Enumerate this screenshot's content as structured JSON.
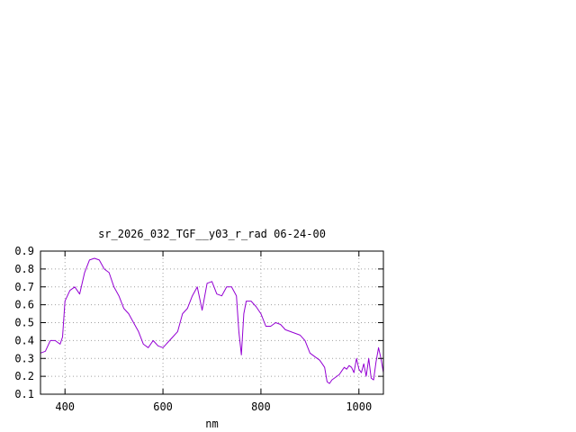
{
  "chart_data": {
    "type": "line",
    "title": "sr_2026_032_TGF__y03_r_rad 06-24-00",
    "xlabel": "nm",
    "ylabel": "",
    "xlim": [
      350,
      1050
    ],
    "ylim": [
      0.1,
      0.9
    ],
    "x_ticks": [
      400,
      600,
      800,
      1000
    ],
    "y_ticks": [
      0.1,
      0.2,
      0.3,
      0.4,
      0.5,
      0.6,
      0.7,
      0.8,
      0.9
    ],
    "x_tick_labels": [
      "400",
      "600",
      "800",
      "1000"
    ],
    "y_tick_labels": [
      "0.1",
      "0.2",
      "0.3",
      "0.4",
      "0.5",
      "0.6",
      "0.7",
      "0.8",
      "0.9"
    ],
    "grid": true,
    "line_color": "#9400d3",
    "series": [
      {
        "x": [
          350,
          360,
          370,
          380,
          390,
          395,
          400,
          410,
          420,
          430,
          440,
          450,
          460,
          470,
          480,
          490,
          500,
          510,
          520,
          530,
          540,
          550,
          560,
          570,
          580,
          590,
          600,
          610,
          620,
          630,
          640,
          650,
          660,
          670,
          680,
          690,
          700,
          710,
          720,
          730,
          740,
          750,
          755,
          760,
          765,
          770,
          780,
          790,
          800,
          810,
          820,
          830,
          840,
          850,
          860,
          870,
          880,
          890,
          900,
          910,
          920,
          925,
          930,
          935,
          940,
          945,
          950,
          955,
          960,
          965,
          970,
          975,
          980,
          985,
          990,
          995,
          1000,
          1005,
          1010,
          1015,
          1020,
          1025,
          1030,
          1035,
          1040,
          1045,
          1050
        ],
        "y": [
          0.33,
          0.34,
          0.4,
          0.4,
          0.38,
          0.42,
          0.62,
          0.68,
          0.7,
          0.66,
          0.78,
          0.85,
          0.86,
          0.85,
          0.8,
          0.78,
          0.7,
          0.65,
          0.58,
          0.55,
          0.5,
          0.45,
          0.38,
          0.36,
          0.4,
          0.37,
          0.36,
          0.39,
          0.42,
          0.45,
          0.55,
          0.58,
          0.65,
          0.7,
          0.57,
          0.72,
          0.73,
          0.66,
          0.65,
          0.7,
          0.7,
          0.65,
          0.45,
          0.32,
          0.55,
          0.62,
          0.62,
          0.59,
          0.55,
          0.48,
          0.48,
          0.5,
          0.49,
          0.46,
          0.45,
          0.44,
          0.43,
          0.4,
          0.33,
          0.31,
          0.29,
          0.27,
          0.25,
          0.17,
          0.16,
          0.18,
          0.19,
          0.2,
          0.21,
          0.23,
          0.25,
          0.24,
          0.26,
          0.25,
          0.22,
          0.3,
          0.24,
          0.22,
          0.27,
          0.2,
          0.3,
          0.19,
          0.18,
          0.28,
          0.36,
          0.3,
          0.22
        ]
      }
    ]
  }
}
